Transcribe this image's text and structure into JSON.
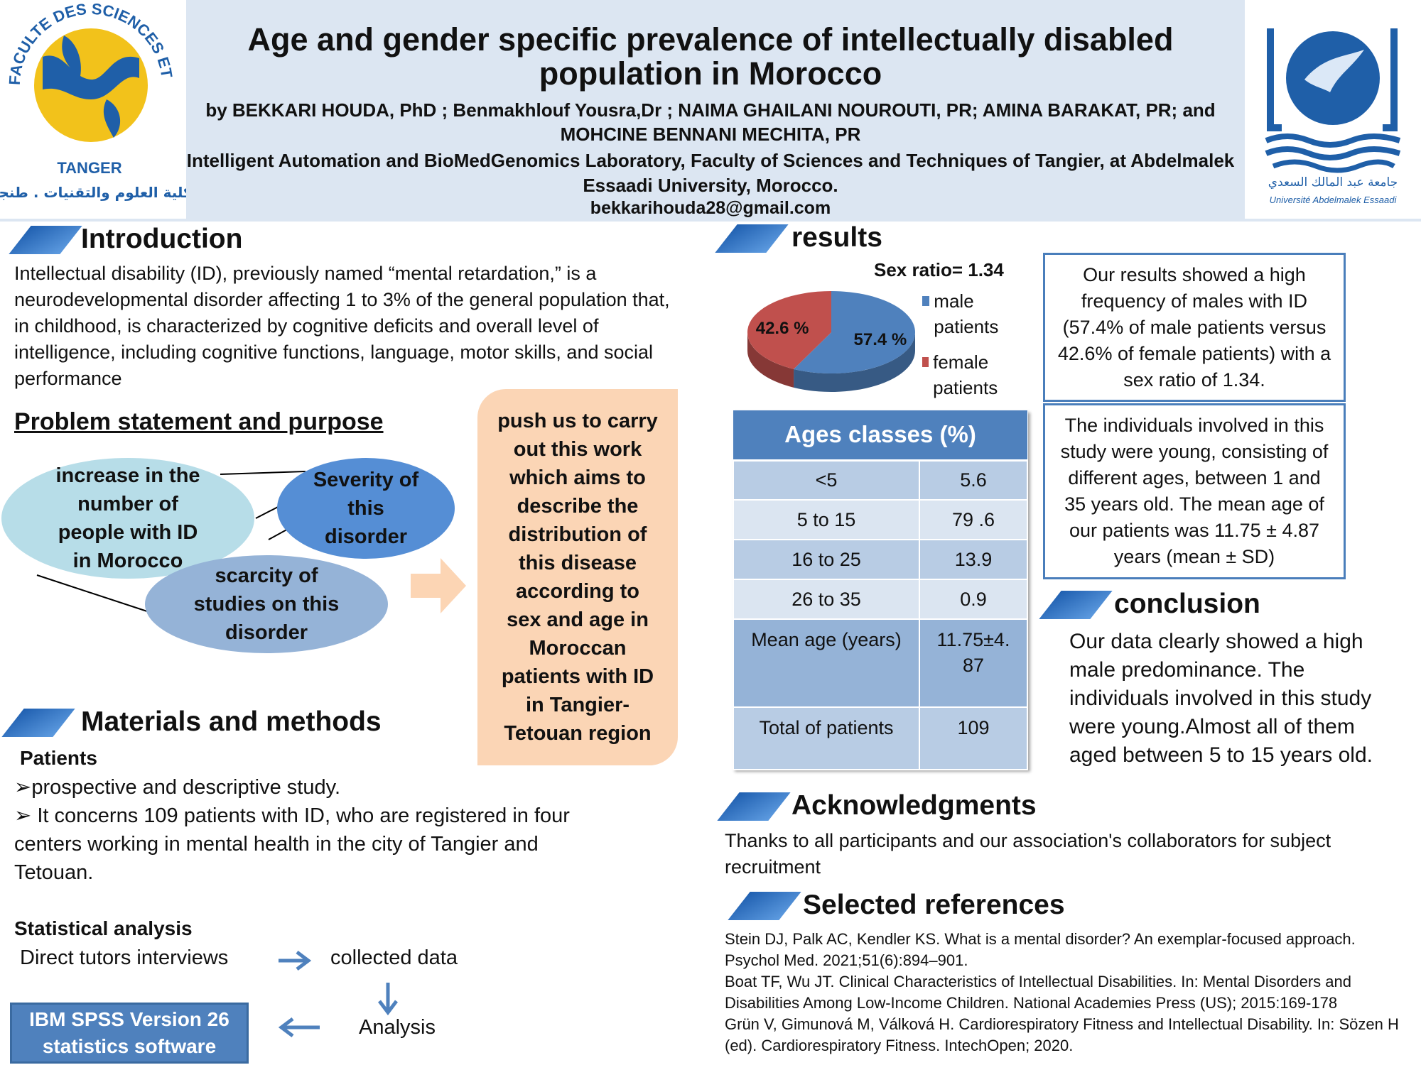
{
  "header": {
    "title": "Age and gender specific prevalence of intellectually disabled population in Morocco",
    "authors": "by BEKKARI HOUDA, PhD ; Benmakhlouf Yousra,Dr ; NAIMA GHAILANI NOUROUTI, PR; AMINA BARAKAT, PR; and MOHCINE BENNANI MECHITA, PR",
    "affiliation": "Intelligent Automation and BioMedGenomics Laboratory, Faculty of Sciences and Techniques of Tangier, at Abdelmalek Essaadi University, Morocco.",
    "email": "bekkarihouda28@gmail.com"
  },
  "logo_left": {
    "ring_text": "FACULTE DES SCIENCES ET TECHNIQUES",
    "city": "TANGER",
    "arabic": "كلية العلوم والتقنيات . طنجة"
  },
  "logo_right": {
    "arabic": "جامعة عبد المالك السعدي",
    "name": "Université Abdelmalek Essaadi"
  },
  "introduction": {
    "heading": "Introduction",
    "text": "Intellectual disability (ID), previously named “mental retardation,” is a neurodevelopmental disorder affecting 1 to 3% of the general population that, in childhood, is characterized by cognitive deficits and overall level of intelligence, including cognitive functions, language, motor skills, and social performance"
  },
  "problem": {
    "heading": "Problem statement and purpose",
    "bubble_increase": "increase in the number of people with ID in Morocco",
    "bubble_severity": "Severity of this disorder",
    "bubble_scarcity": "scarcity of studies on this disorder",
    "purpose": "push us to carry out this work which aims to describe the distribution of this disease according to sex and age in Moroccan patients with ID in Tangier-Tetouan region"
  },
  "methods": {
    "heading": "Materials and methods",
    "patients_label": "Patients",
    "bullet1": "prospective and descriptive study.",
    "bullet2": " It concerns 109 patients with ID, who are registered in four centers working in mental health in the city of Tangier and Tetouan.",
    "stat_label": "Statistical analysis",
    "flow_interviews": "Direct tutors interviews",
    "flow_collected": "collected data",
    "flow_analysis": "Analysis",
    "software": "IBM SPSS Version 26 statistics software"
  },
  "results": {
    "heading": "results",
    "summary": "Our results showed a high frequency of males with ID (57.4% of male patients versus 42.6% of female patients) with a sex ratio of 1.34.",
    "ages_text": "The individuals involved in this study were young, consisting of different ages, between 1 and 35 years old. The mean age of our patients was 11.75 ± 4.87 years (mean ± SD)"
  },
  "chart_data": {
    "type": "pie",
    "title": "Sex ratio= 1.34",
    "slices": [
      {
        "label": "male patients",
        "value": 57.4,
        "display": "57.4 %",
        "color": "#4f81bd"
      },
      {
        "label": "female patients",
        "value": 42.6,
        "display": "42.6 %",
        "color": "#c0504d"
      }
    ]
  },
  "ages_table": {
    "header": "Ages classes (%)",
    "rows": [
      {
        "label": "<5",
        "value": "5.6"
      },
      {
        "label": "5 to 15",
        "value": "79 .6"
      },
      {
        "label": "16 to 25",
        "value": "13.9"
      },
      {
        "label": "26 to 35",
        "value": "0.9"
      },
      {
        "label": "Mean age (years)",
        "value": "11.75±4.\n87"
      },
      {
        "label": "Total of patients",
        "value": "109"
      }
    ]
  },
  "conclusion": {
    "heading": "conclusion",
    "text": "Our data clearly showed a high male predominance. The individuals involved in this study were young.Almost all of them aged between 5 to 15 years old."
  },
  "acknowledgments": {
    "heading": "Acknowledgments",
    "text": " Thanks to all participants and our association's collaborators for subject recruitment"
  },
  "references": {
    "heading": "Selected references",
    "items": [
      "Stein DJ, Palk AC, Kendler KS. What is a mental disorder? An exemplar-focused approach. Psychol Med. 2021;51(6):894–901.",
      "Boat TF, Wu JT. Clinical Characteristics of Intellectual Disabilities. In: Mental Disorders and Disabilities Among Low-Income Children. National Academies Press (US); 2015:169-178",
      "Grün V, Gimunová M, Válková H. Cardiorespiratory Fitness and Intellectual Disability. In: Sözen H (ed). Cardiorespiratory Fitness. IntechOpen; 2020."
    ]
  },
  "colors": {
    "header_band": "#dce6f2",
    "accent_blue": "#4f81bd",
    "female_red": "#c0504d",
    "purpose_box": "#fbd5b5"
  }
}
